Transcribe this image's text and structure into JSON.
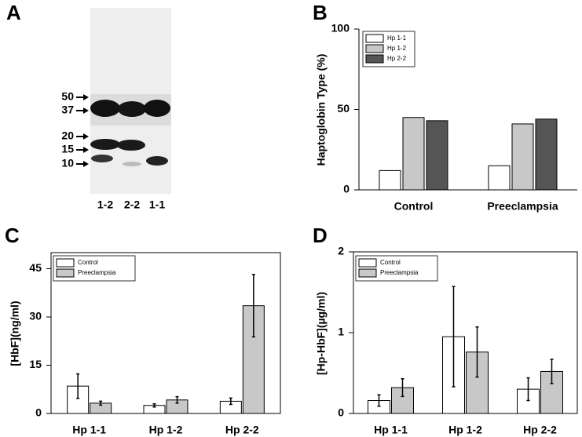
{
  "blot": {
    "panel": "A",
    "markers": [
      "50",
      "37",
      "20",
      "15",
      "10"
    ],
    "lanes": [
      "1-2",
      "2-2",
      "1-1"
    ]
  },
  "chart_data": [
    {
      "type": "bar",
      "panel": "B",
      "y_label": "Haptoglobin Type (%)",
      "frame": false,
      "categories": [
        "Control",
        "Preeclampsia"
      ],
      "ylim": [
        0,
        100
      ],
      "yticks": [
        0,
        50,
        100
      ],
      "series": [
        {
          "name": "Hp 1-1",
          "color": "#ffffff",
          "values": [
            12,
            15
          ]
        },
        {
          "name": "Hp 1-2",
          "color": "#c8c8c8",
          "values": [
            45,
            41
          ]
        },
        {
          "name": "Hp 2-2",
          "color": "#555555",
          "values": [
            43,
            44
          ]
        }
      ]
    },
    {
      "type": "bar",
      "panel": "C",
      "y_label": "[HbF](ng/ml)",
      "frame": true,
      "categories": [
        "Hp 1-1",
        "Hp 1-2",
        "Hp 2-2"
      ],
      "ylim": [
        0,
        50
      ],
      "yticks": [
        0,
        15,
        30,
        45
      ],
      "series": [
        {
          "name": "Control",
          "color": "#ffffff",
          "values": [
            8.5,
            2.5,
            3.8
          ],
          "errors": [
            3.8,
            0.5,
            1.0
          ]
        },
        {
          "name": "Preeclampsia",
          "color": "#c8c8c8",
          "values": [
            3.2,
            4.2,
            33.5
          ],
          "errors": [
            0.6,
            1.0,
            9.7
          ]
        }
      ]
    },
    {
      "type": "bar",
      "panel": "D",
      "y_label": "[Hp-HbF](µg/ml)",
      "frame": true,
      "categories": [
        "Hp 1-1",
        "Hp 1-2",
        "Hp 2-2"
      ],
      "ylim": [
        0,
        2
      ],
      "yticks": [
        0,
        1,
        2
      ],
      "series": [
        {
          "name": "Control",
          "color": "#ffffff",
          "values": [
            0.16,
            0.95,
            0.3
          ],
          "errors": [
            0.07,
            0.62,
            0.14
          ]
        },
        {
          "name": "Preeclampsia",
          "color": "#c8c8c8",
          "values": [
            0.32,
            0.76,
            0.52
          ],
          "errors": [
            0.11,
            0.31,
            0.15
          ]
        }
      ]
    }
  ]
}
